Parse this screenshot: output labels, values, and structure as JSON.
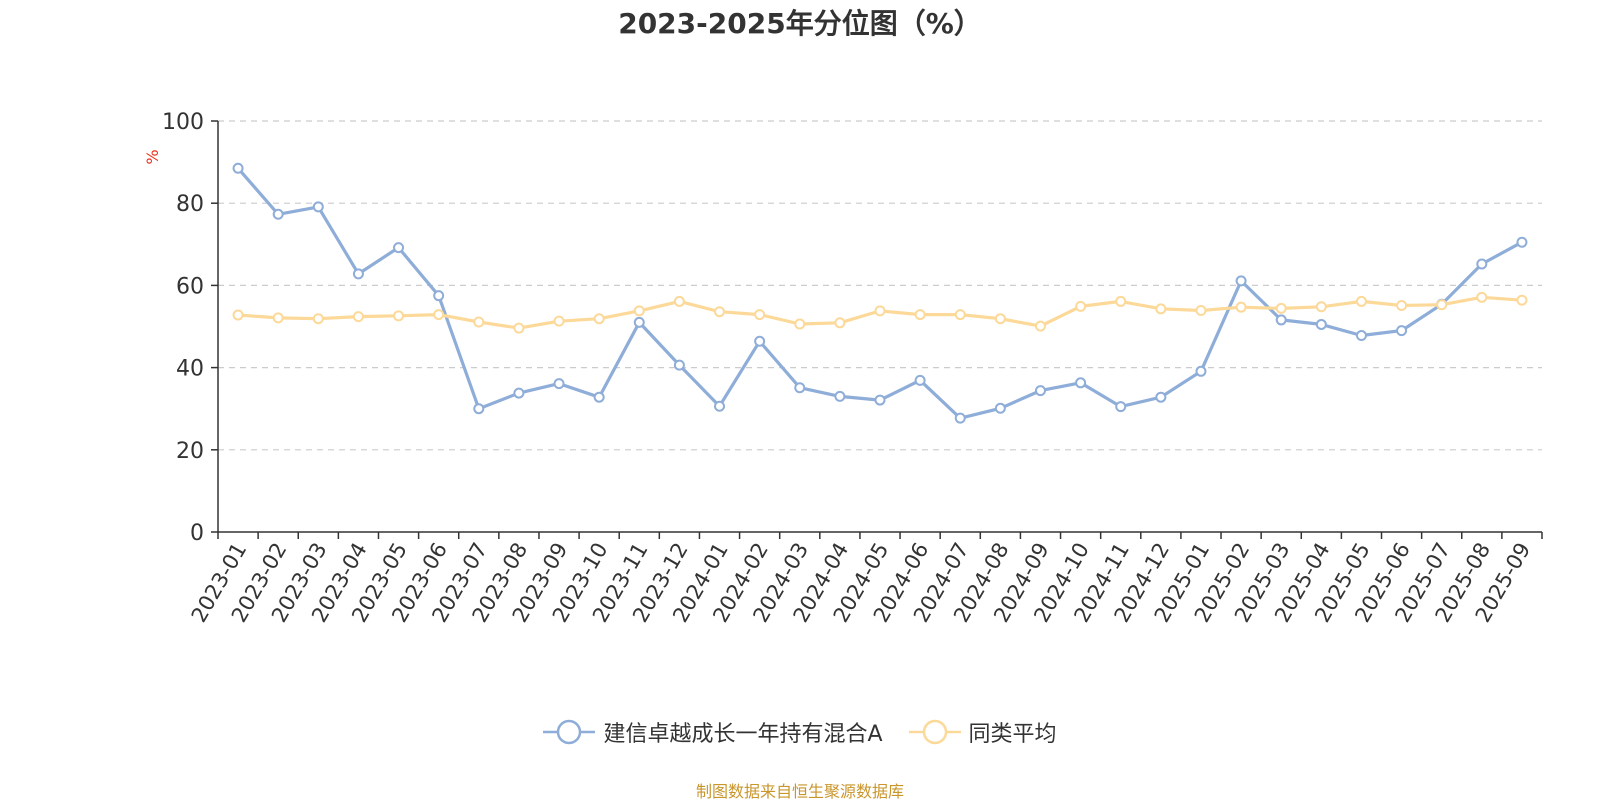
{
  "chart_data": {
    "type": "line",
    "title": "2023-2025年分位图（%）",
    "ylabel": "%",
    "xlabel": "",
    "ylim": [
      0,
      100
    ],
    "yticks": [
      0,
      20,
      40,
      60,
      80,
      100
    ],
    "grid": true,
    "legend_position": "bottom-center",
    "categories": [
      "2023-01",
      "2023-02",
      "2023-03",
      "2023-04",
      "2023-05",
      "2023-06",
      "2023-07",
      "2023-08",
      "2023-09",
      "2023-10",
      "2023-11",
      "2023-12",
      "2024-01",
      "2024-02",
      "2024-03",
      "2024-04",
      "2024-05",
      "2024-06",
      "2024-07",
      "2024-08",
      "2024-09",
      "2024-10",
      "2024-11",
      "2024-12",
      "2025-01",
      "2025-02",
      "2025-03",
      "2025-04",
      "2025-05",
      "2025-06",
      "2025-07",
      "2025-08",
      "2025-09"
    ],
    "series": [
      {
        "name": "建信卓越成长一年持有混合A",
        "color": "#8eadd8",
        "values": [
          88.5,
          77.3,
          79.1,
          62.8,
          69.2,
          57.5,
          30.0,
          33.8,
          36.1,
          32.8,
          51.0,
          40.6,
          30.6,
          46.4,
          35.1,
          33.0,
          32.1,
          36.9,
          27.7,
          30.1,
          34.4,
          36.3,
          30.5,
          32.8,
          39.1,
          61.1,
          51.6,
          50.5,
          47.8,
          49.0,
          55.4,
          65.2,
          70.5
        ]
      },
      {
        "name": "同类平均",
        "color": "#fcd999",
        "values": [
          52.8,
          52.1,
          51.9,
          52.4,
          52.6,
          52.9,
          51.1,
          49.6,
          51.3,
          51.9,
          53.8,
          56.1,
          53.6,
          52.9,
          50.6,
          50.9,
          53.8,
          52.9,
          52.9,
          51.9,
          50.1,
          54.9,
          56.1,
          54.3,
          53.9,
          54.7,
          54.4,
          54.8,
          56.1,
          55.1,
          55.3,
          57.1,
          56.4
        ]
      }
    ]
  },
  "colors": {
    "axis": "#333333",
    "grid": "#cccccc",
    "ylabel": "#e8341f",
    "source": "#c9962c"
  },
  "source_note": "制图数据来自恒生聚源数据库"
}
